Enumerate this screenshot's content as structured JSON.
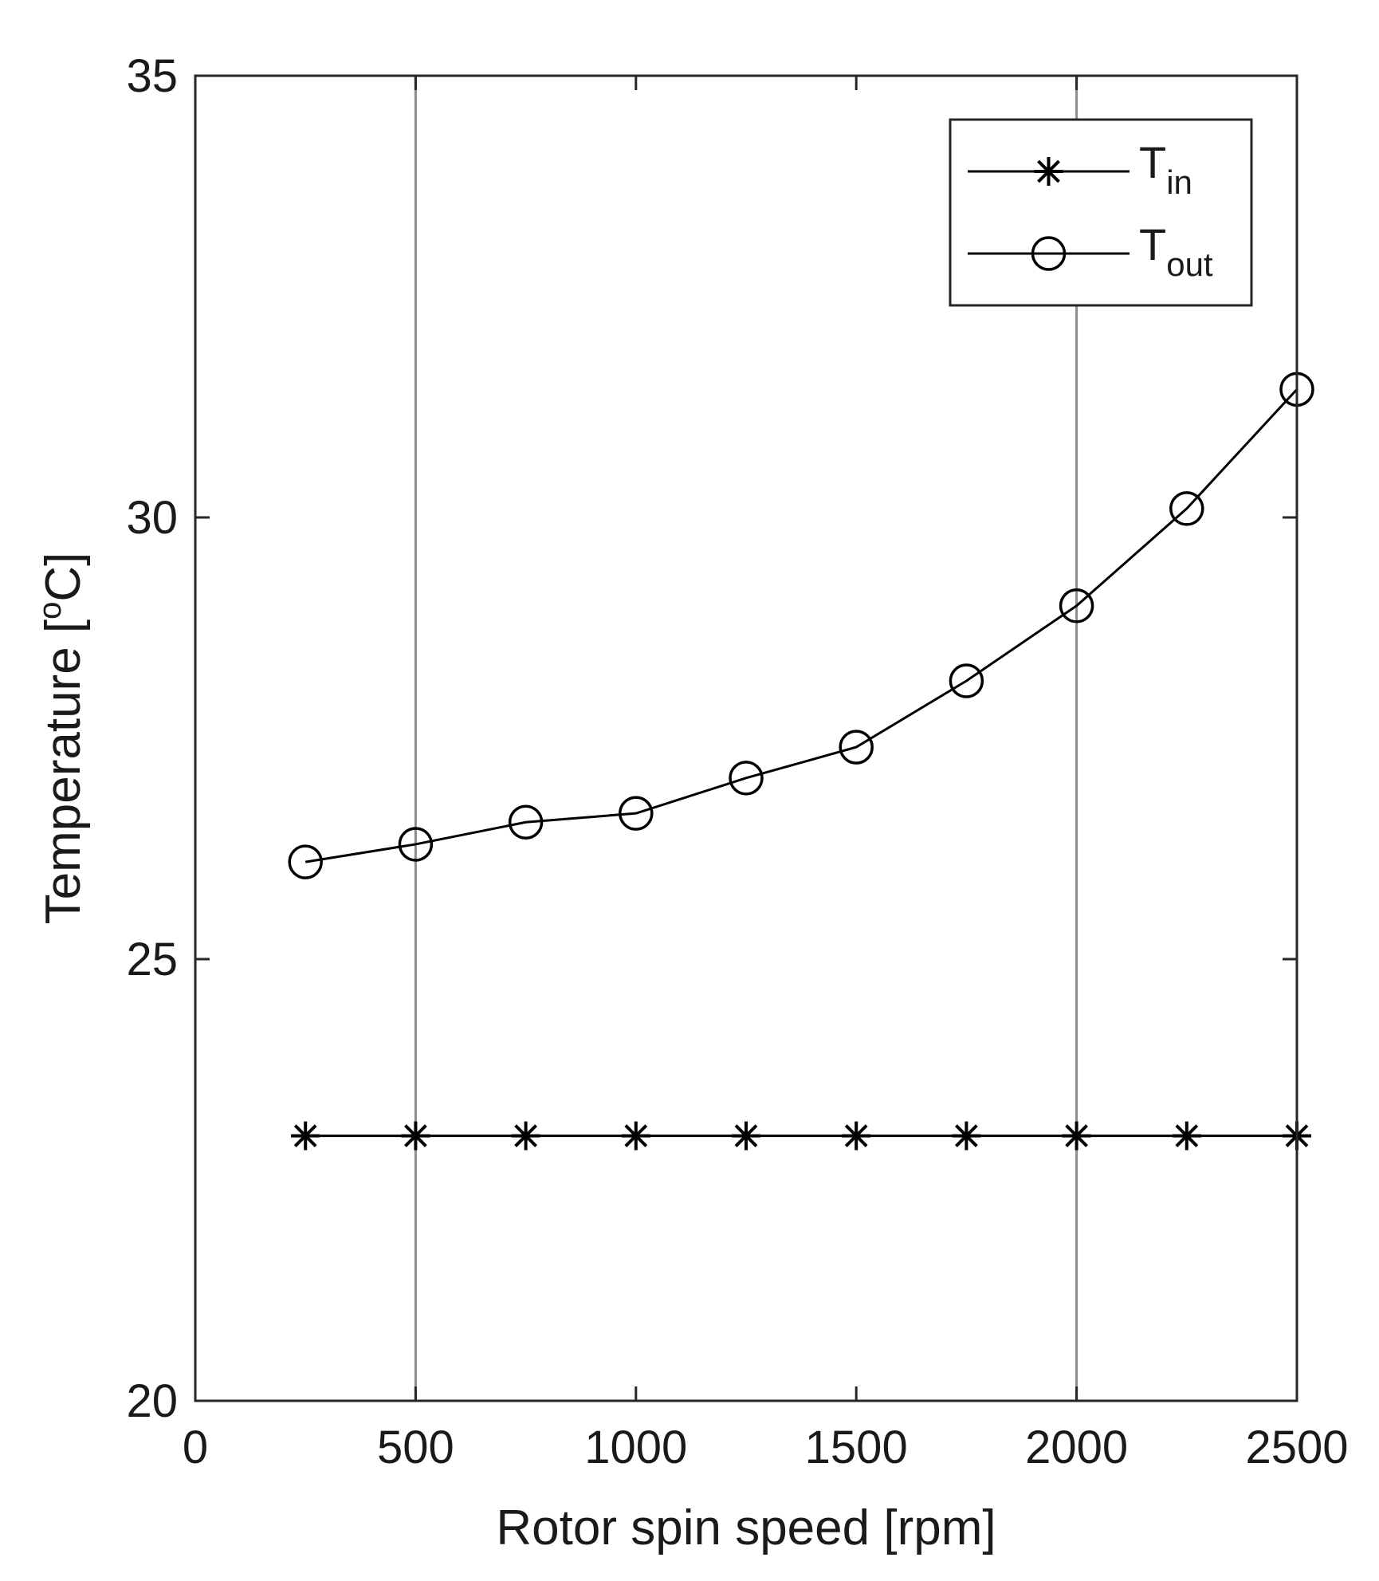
{
  "chart_data": {
    "type": "line",
    "xlabel": "Rotor spin speed [rpm]",
    "ylabel": "Temperature [",
    "ylabel_degree": "o",
    "ylabel_tail": "C]",
    "xlim": [
      0,
      2500
    ],
    "ylim": [
      20,
      35
    ],
    "xticks": [
      0,
      500,
      1000,
      1500,
      2000,
      2500
    ],
    "xtick_labels": [
      "0",
      "500",
      "1000",
      "1500",
      "2000",
      "2500"
    ],
    "yticks": [
      20,
      25,
      30,
      35
    ],
    "ytick_labels": [
      "20",
      "25",
      "30",
      "35"
    ],
    "vertical_reference_lines": [
      500,
      2000
    ],
    "grid": false,
    "legend_position": "top-right",
    "x": [
      250,
      500,
      750,
      1000,
      1250,
      1500,
      1750,
      2000,
      2250,
      2500
    ],
    "series": [
      {
        "id": "tin",
        "legend_main": "T",
        "legend_sub": "in",
        "marker": "asterisk",
        "color": "#000000",
        "values": [
          23.0,
          23.0,
          23.0,
          23.0,
          23.0,
          23.0,
          23.0,
          23.0,
          23.0,
          23.0
        ]
      },
      {
        "id": "tout",
        "legend_main": "T",
        "legend_sub": "out",
        "marker": "circle",
        "color": "#000000",
        "values": [
          26.1,
          26.3,
          26.55,
          26.65,
          27.05,
          27.4,
          28.15,
          29.0,
          30.1,
          31.45
        ]
      }
    ]
  }
}
